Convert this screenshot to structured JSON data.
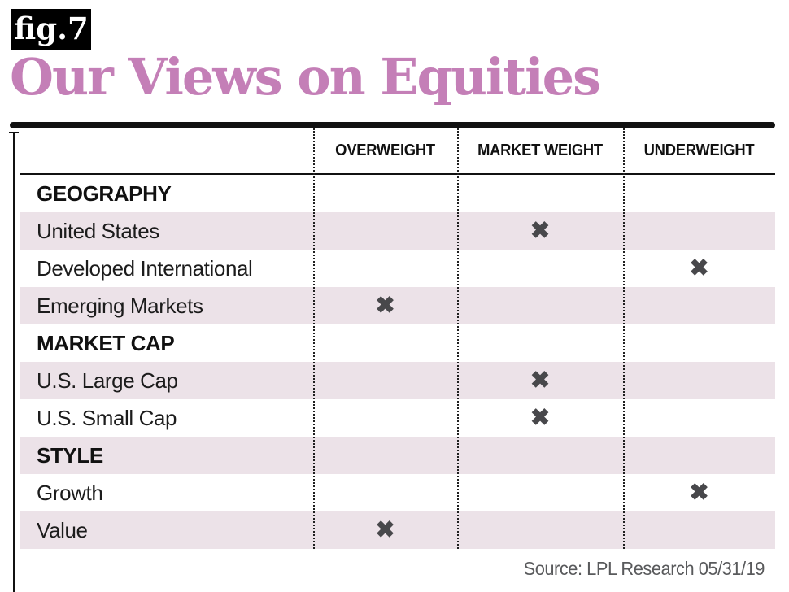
{
  "figure": {
    "badge_label": "fig.7",
    "title": "Our Views on Equities"
  },
  "chart_data": {
    "type": "table",
    "title": "Our Views on Equities",
    "columns": [
      "OVERWEIGHT",
      "MARKET WEIGHT",
      "UNDERWEIGHT"
    ],
    "rows": [
      {
        "label": "GEOGRAPHY",
        "section": true,
        "rating": null
      },
      {
        "label": "United States",
        "section": false,
        "rating": "MARKET WEIGHT"
      },
      {
        "label": "Developed International",
        "section": false,
        "rating": "UNDERWEIGHT"
      },
      {
        "label": "Emerging Markets",
        "section": false,
        "rating": "OVERWEIGHT"
      },
      {
        "label": "MARKET CAP",
        "section": true,
        "rating": null
      },
      {
        "label": "U.S. Large Cap",
        "section": false,
        "rating": "MARKET WEIGHT"
      },
      {
        "label": "U.S. Small Cap",
        "section": false,
        "rating": "MARKET WEIGHT"
      },
      {
        "label": "STYLE",
        "section": true,
        "rating": null
      },
      {
        "label": "Growth",
        "section": false,
        "rating": "UNDERWEIGHT"
      },
      {
        "label": "Value",
        "section": false,
        "rating": "OVERWEIGHT"
      }
    ],
    "legend_position": "none",
    "grid": "dotted-column-separators"
  },
  "icons": {
    "mark_glyph": "✖",
    "mark_name": "x-mark-icon"
  },
  "source_note": "Source: LPL Research 05/31/19",
  "colors": {
    "title_text": "#C47FB7",
    "badge_bg": "#000000",
    "badge_text": "#FFFFFF",
    "row_alt_bg": "#ECE2E8",
    "mark": "#48484B",
    "rule": "#111111",
    "source_text": "#595A5C"
  }
}
